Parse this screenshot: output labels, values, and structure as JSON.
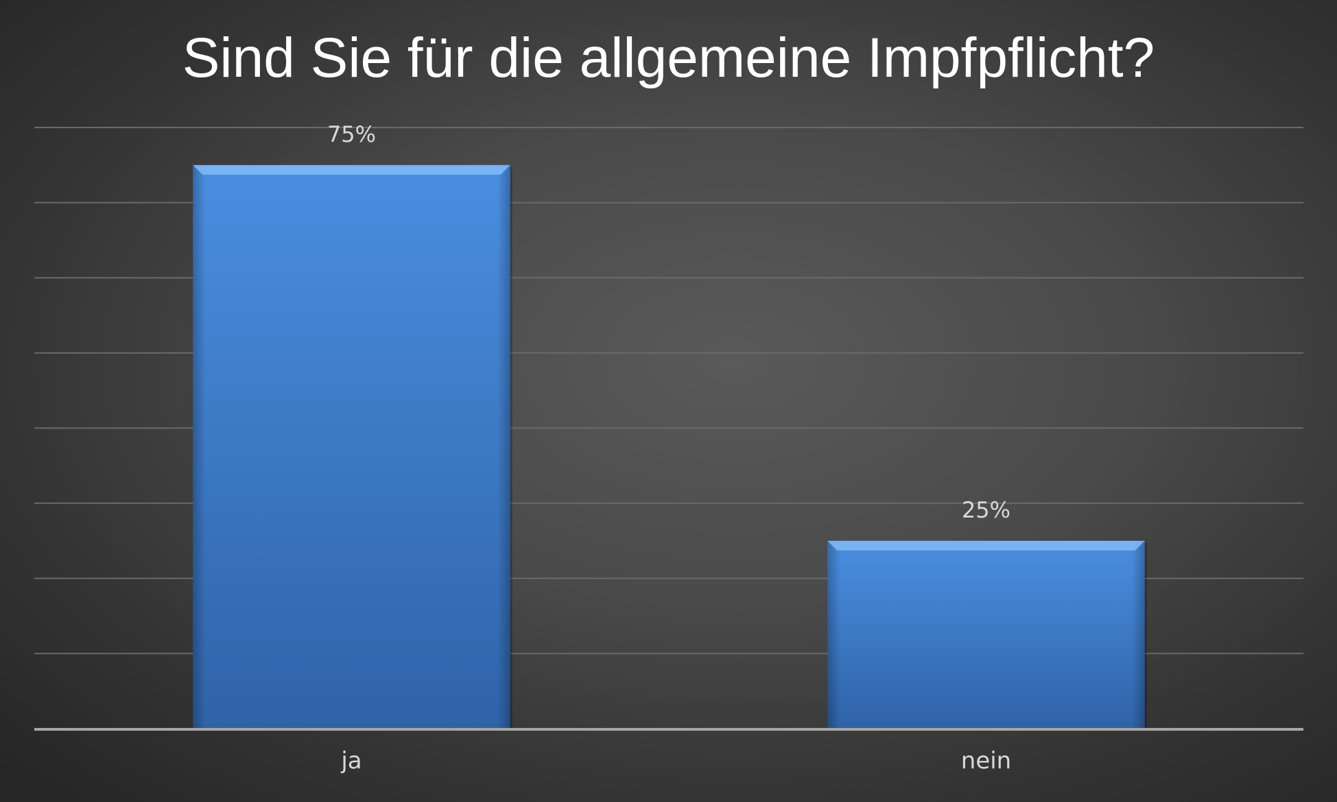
{
  "chart_data": {
    "type": "bar",
    "title": "Sind Sie für die allgemeine Impfpflicht?",
    "categories": [
      "ja",
      "nein"
    ],
    "values": [
      75,
      25
    ],
    "data_labels": [
      "75%",
      "25%"
    ],
    "ylim": [
      0,
      80
    ],
    "grid": true,
    "legend": "none",
    "colors": {
      "bar_top": "#4a8ee0",
      "bar_bottom": "#2f63a8",
      "bar_highlight": "#7fb7f5",
      "grid": "#6a6a6a",
      "axis": "#a6a6a6",
      "title": "#ffffff",
      "label": "#d9d9d9"
    }
  }
}
